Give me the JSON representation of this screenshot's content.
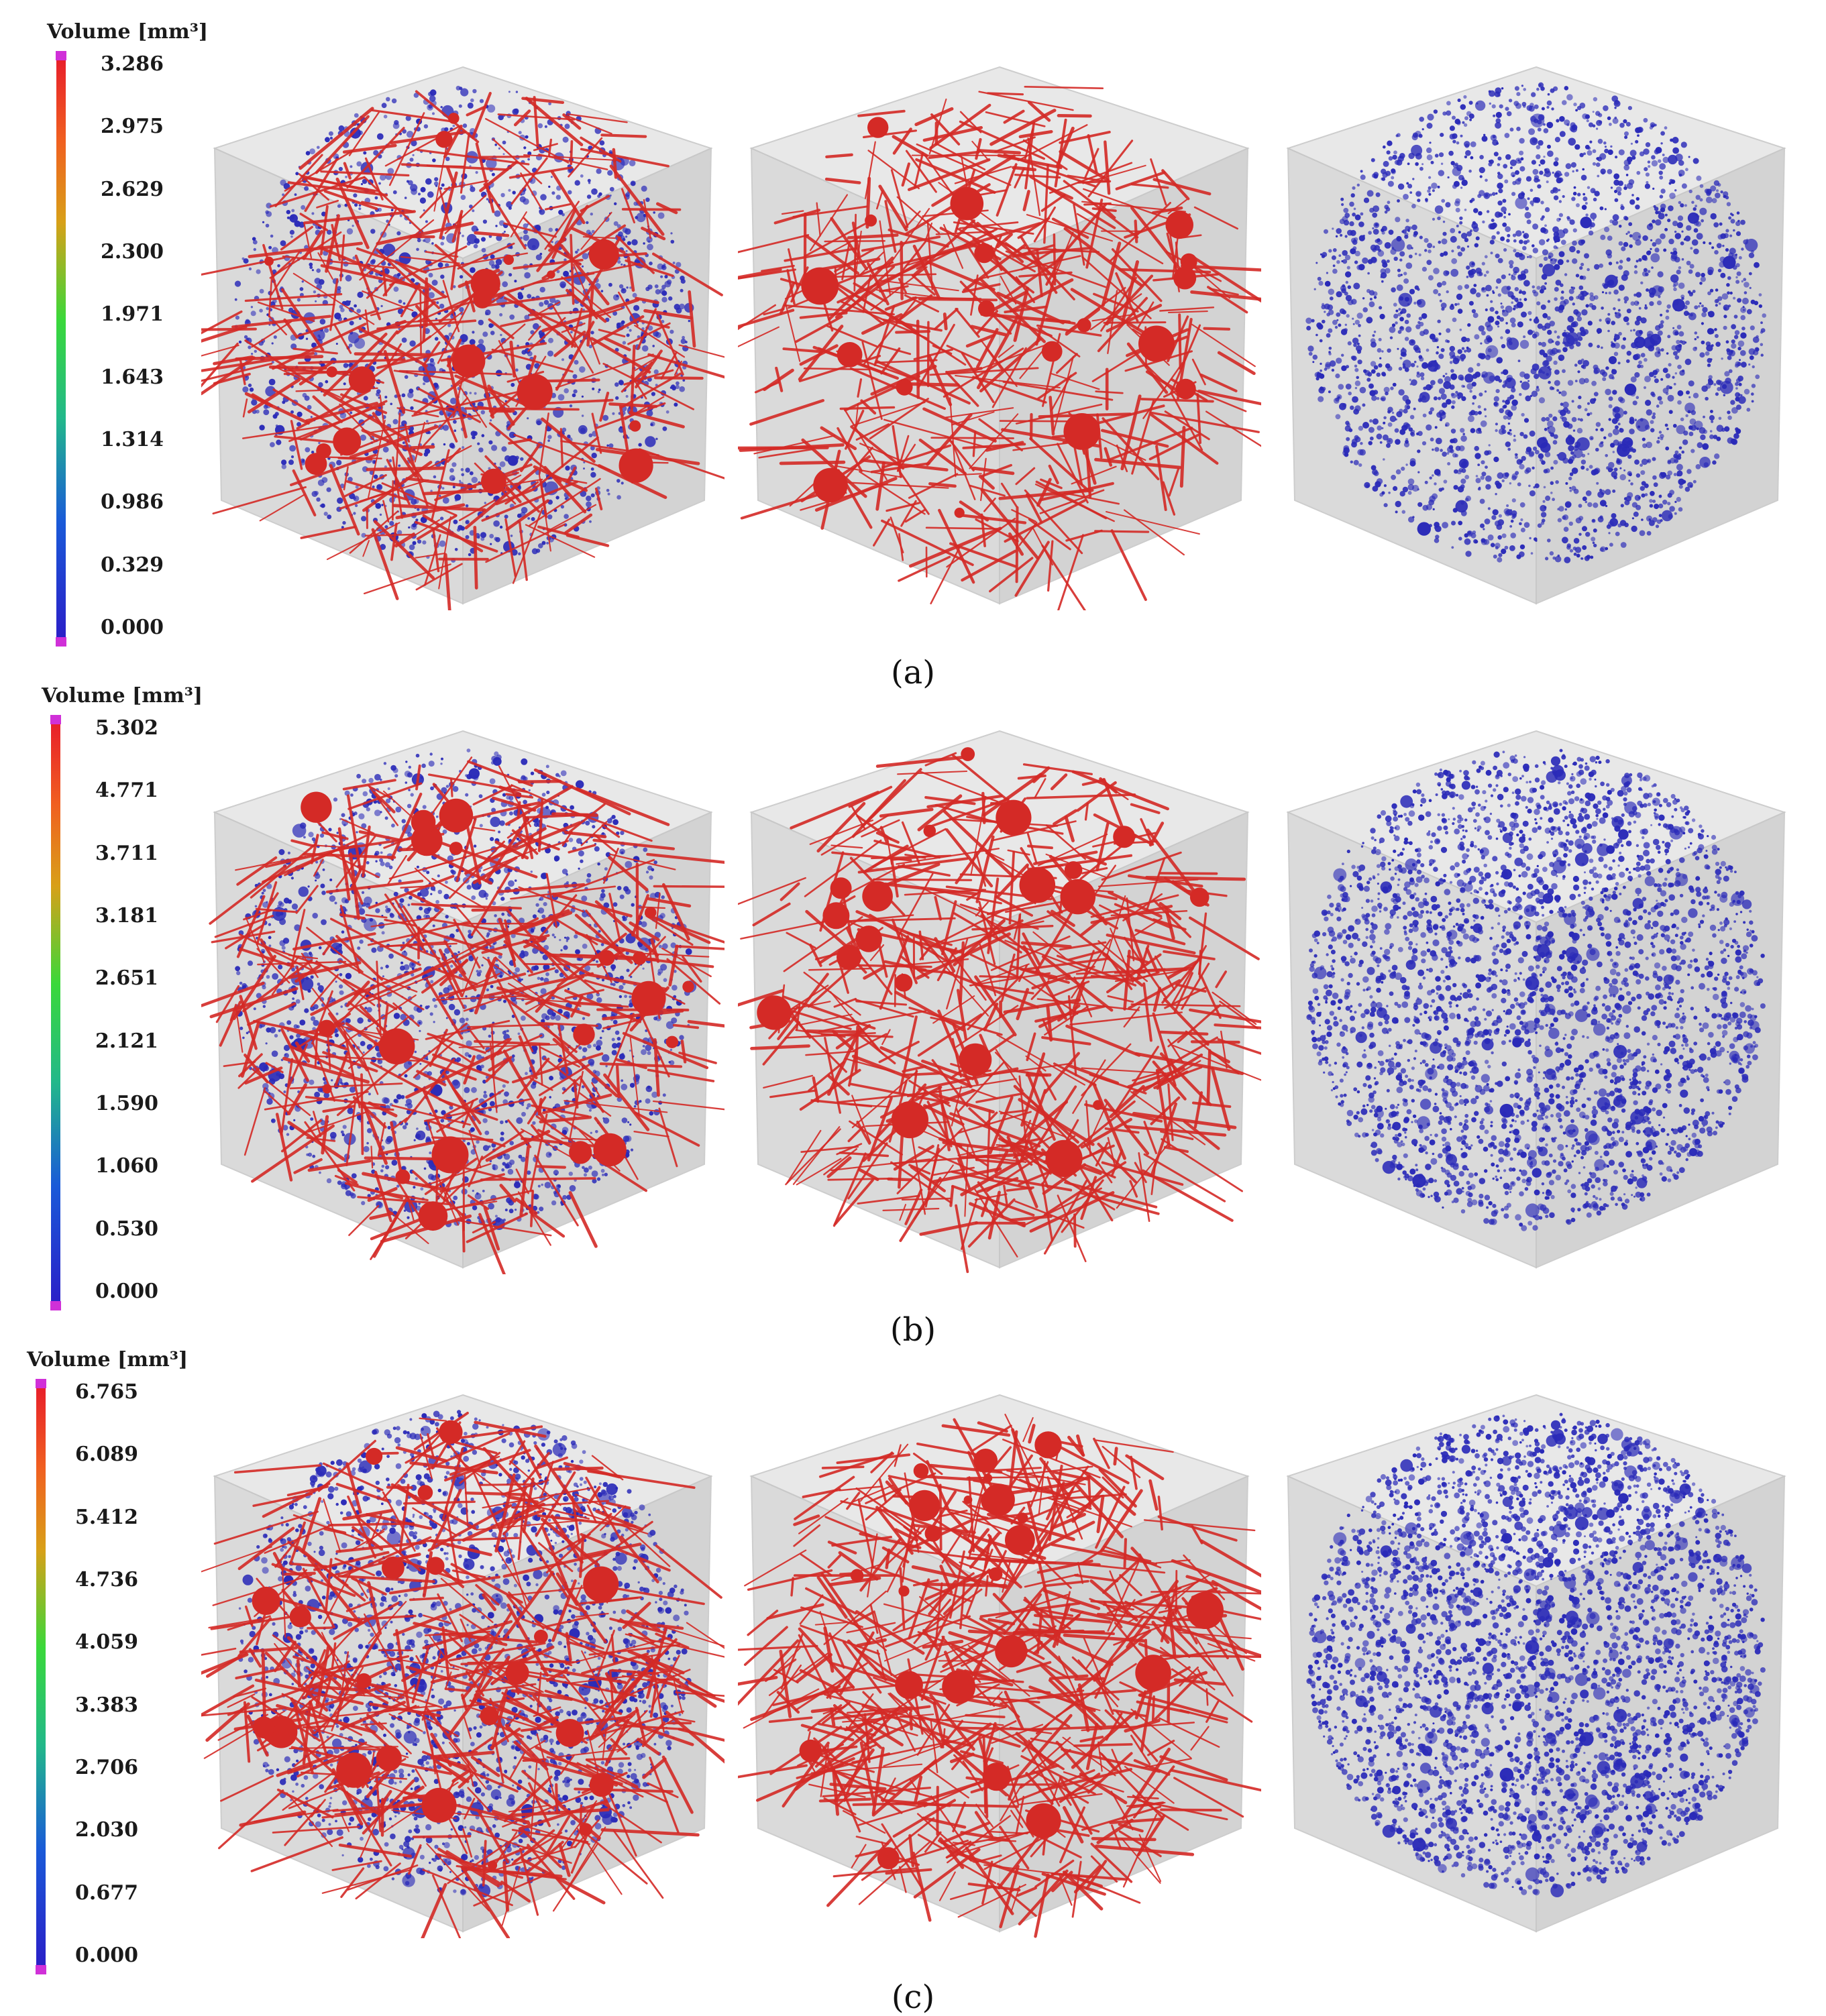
{
  "colors": {
    "connected_pore": "#d42a26",
    "isolated_pore": "#2a2ab8",
    "cube_face": "#dcdcdc",
    "cap": "#d030d8"
  },
  "panels": [
    {
      "id": "a",
      "caption": "(a)",
      "legend": {
        "title": "Volume [mm³]",
        "ticks": [
          "3.286",
          "2.975",
          "2.629",
          "2.300",
          "1.971",
          "1.643",
          "1.314",
          "0.986",
          "0.329",
          "0.000"
        ]
      },
      "cubes": [
        "cube-all-pores",
        "cube-connected-pores",
        "cube-isolated-pores"
      ]
    },
    {
      "id": "b",
      "caption": "(b)",
      "legend": {
        "title": "Volume [mm³]",
        "ticks": [
          "5.302",
          "4.771",
          "3.711",
          "3.181",
          "2.651",
          "2.121",
          "1.590",
          "1.060",
          "0.530",
          "0.000"
        ]
      },
      "cubes": [
        "cube-all-pores",
        "cube-connected-pores",
        "cube-isolated-pores"
      ]
    },
    {
      "id": "c",
      "caption": "(c)",
      "legend": {
        "title": "Volume [mm³]",
        "ticks": [
          "6.765",
          "6.089",
          "5.412",
          "4.736",
          "4.059",
          "3.383",
          "2.706",
          "2.030",
          "0.677",
          "0.000"
        ]
      },
      "cubes": [
        "cube-all-pores",
        "cube-connected-pores",
        "cube-isolated-pores"
      ]
    }
  ]
}
